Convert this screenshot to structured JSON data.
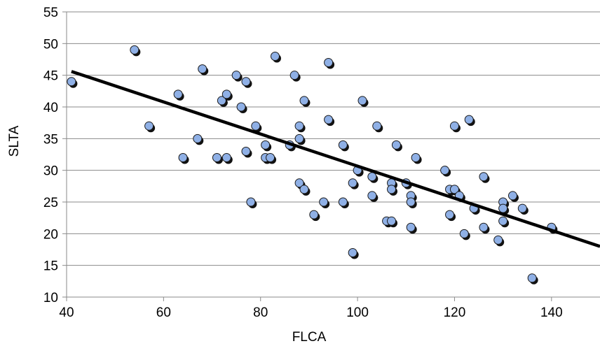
{
  "chart_data": {
    "type": "scatter",
    "xlabel": "FLCA",
    "ylabel": "SLTA",
    "xlim": [
      40,
      150
    ],
    "ylim": [
      10,
      55
    ],
    "x_ticks": [
      40,
      60,
      80,
      100,
      120,
      140
    ],
    "y_ticks": [
      10,
      15,
      20,
      25,
      30,
      35,
      40,
      45,
      50,
      55
    ],
    "grid": "horizontal",
    "legend": "none",
    "marker_color": "#8fb0e6",
    "line_color": "#000000",
    "series": [
      {
        "points": [
          [
            41,
            44
          ],
          [
            54,
            49
          ],
          [
            57,
            37
          ],
          [
            63,
            42
          ],
          [
            64,
            32
          ],
          [
            67,
            35
          ],
          [
            68,
            46
          ],
          [
            71,
            32
          ],
          [
            72,
            41
          ],
          [
            73,
            42
          ],
          [
            73,
            32
          ],
          [
            75,
            45
          ],
          [
            76,
            40
          ],
          [
            77,
            44
          ],
          [
            77,
            33
          ],
          [
            78,
            25
          ],
          [
            79,
            37
          ],
          [
            81,
            34
          ],
          [
            81,
            32
          ],
          [
            82,
            32
          ],
          [
            83,
            48
          ],
          [
            86,
            34
          ],
          [
            87,
            45
          ],
          [
            88,
            37
          ],
          [
            88,
            35
          ],
          [
            88,
            28
          ],
          [
            89,
            41
          ],
          [
            89,
            27
          ],
          [
            91,
            23
          ],
          [
            93,
            25
          ],
          [
            94,
            47
          ],
          [
            94,
            38
          ],
          [
            97,
            34
          ],
          [
            97,
            25
          ],
          [
            99,
            28
          ],
          [
            99,
            17
          ],
          [
            100,
            30
          ],
          [
            101,
            41
          ],
          [
            103,
            29
          ],
          [
            103,
            26
          ],
          [
            104,
            37
          ],
          [
            106,
            22
          ],
          [
            107,
            28
          ],
          [
            107,
            27
          ],
          [
            107,
            22
          ],
          [
            108,
            34
          ],
          [
            110,
            28
          ],
          [
            111,
            26
          ],
          [
            111,
            25
          ],
          [
            111,
            21
          ],
          [
            112,
            32
          ],
          [
            118,
            30
          ],
          [
            119,
            27
          ],
          [
            119,
            23
          ],
          [
            120,
            37
          ],
          [
            120,
            27
          ],
          [
            121,
            26
          ],
          [
            122,
            20
          ],
          [
            123,
            38
          ],
          [
            124,
            24
          ],
          [
            126,
            29
          ],
          [
            126,
            21
          ],
          [
            129,
            19
          ],
          [
            130,
            25
          ],
          [
            130,
            24
          ],
          [
            130,
            22
          ],
          [
            132,
            26
          ],
          [
            134,
            24
          ],
          [
            136,
            13
          ],
          [
            140,
            21
          ]
        ]
      }
    ],
    "trendline": {
      "x1": 41,
      "y1": 45.6,
      "x2": 150,
      "y2": 18
    }
  }
}
